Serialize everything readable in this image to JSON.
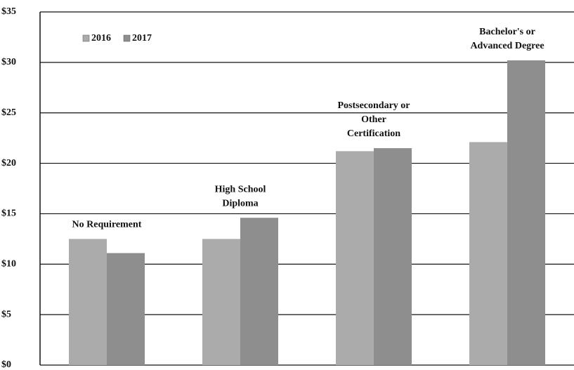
{
  "chart_data": {
    "type": "bar",
    "categories": [
      [
        "No Requirement"
      ],
      [
        "High School",
        "Diploma"
      ],
      [
        "Postsecondary or",
        "Other",
        "Certification"
      ],
      [
        "Bachelor's or",
        "Advanced Degree"
      ]
    ],
    "series": [
      {
        "name": "2016",
        "color": "#ababab",
        "values": [
          12.5,
          12.5,
          21.2,
          22.1
        ]
      },
      {
        "name": "2017",
        "color": "#8e8e8e",
        "values": [
          11.1,
          14.6,
          21.5,
          30.2
        ]
      }
    ],
    "ylim": [
      0,
      35
    ],
    "yticks": [
      {
        "value": 0,
        "label": "$0"
      },
      {
        "value": 5,
        "label": "$5"
      },
      {
        "value": 10,
        "label": "$10"
      },
      {
        "value": 15,
        "label": "$15"
      },
      {
        "value": 20,
        "label": "$20"
      },
      {
        "value": 25,
        "label": "$25"
      },
      {
        "value": 30,
        "label": "$30"
      },
      {
        "value": 35,
        "label": "$35"
      }
    ],
    "grid": true,
    "legend": "top-left"
  }
}
